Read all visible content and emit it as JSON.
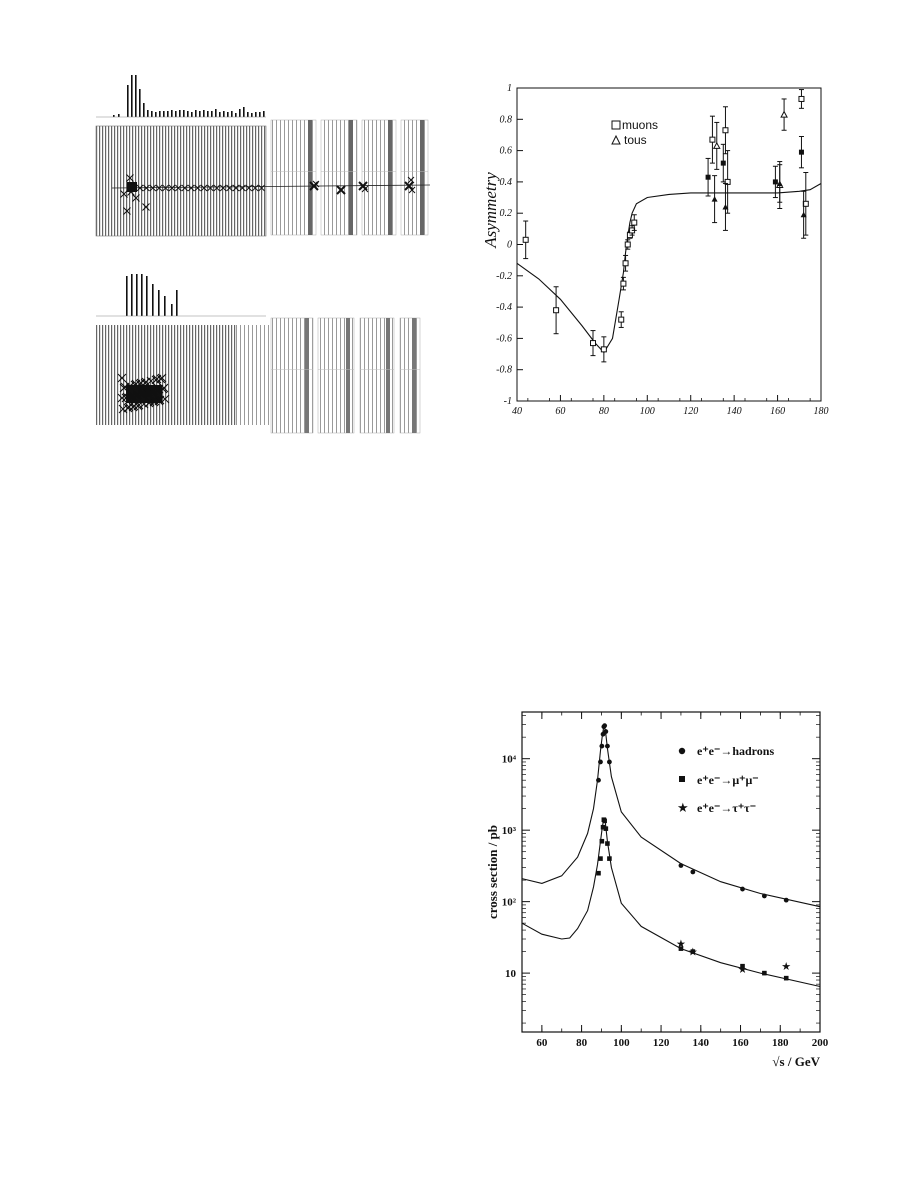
{
  "chart_data": [
    {
      "type": "scatter",
      "ylabel": "Asymmetry",
      "xlim": [
        40,
        180
      ],
      "ylim": [
        -1,
        1
      ],
      "xticks": [
        40,
        60,
        80,
        100,
        120,
        140,
        160,
        180
      ],
      "yticks": [
        1,
        0.8,
        0.6,
        0.4,
        0.2,
        0,
        -0.2,
        -0.4,
        -0.6,
        -0.8,
        -1
      ],
      "legend": [
        "muons",
        "tous"
      ],
      "legend_position": "top-center",
      "series": [
        {
          "name": "muons",
          "marker": "square-open",
          "x": [
            44,
            58,
            75,
            80,
            88,
            89,
            90,
            91,
            92,
            93,
            94,
            130,
            136,
            137,
            171,
            173
          ],
          "y": [
            0.03,
            -0.42,
            -0.63,
            -0.67,
            -0.48,
            -0.25,
            -0.12,
            0.0,
            0.06,
            0.09,
            0.14,
            0.67,
            0.73,
            0.4,
            0.93,
            0.26
          ],
          "err": [
            0.12,
            0.15,
            0.08,
            0.08,
            0.05,
            0.04,
            0.05,
            0.03,
            0.02,
            0.03,
            0.05,
            0.15,
            0.15,
            0.2,
            0.06,
            0.2
          ]
        },
        {
          "name": "tous",
          "marker": "triangle-open",
          "x": [
            132,
            161,
            163
          ],
          "y": [
            0.63,
            0.38,
            0.83
          ],
          "err": [
            0.15,
            0.15,
            0.1
          ]
        },
        {
          "name": "",
          "marker": "square-filled",
          "x": [
            128,
            135,
            159,
            171
          ],
          "y": [
            0.43,
            0.52,
            0.4,
            0.59
          ],
          "err": [
            0.12,
            0.12,
            0.1,
            0.1
          ]
        },
        {
          "name": "",
          "marker": "triangle-filled",
          "x": [
            131,
            136,
            161,
            172
          ],
          "y": [
            0.29,
            0.24,
            0.39,
            0.19
          ],
          "err": [
            0.15,
            0.15,
            0.12,
            0.15
          ]
        }
      ],
      "curve": {
        "x": [
          40,
          50,
          60,
          70,
          76,
          80,
          84,
          87,
          89,
          90,
          91,
          92,
          93,
          95,
          100,
          110,
          120,
          140,
          160,
          170,
          175,
          180
        ],
        "y": [
          -0.12,
          -0.22,
          -0.35,
          -0.52,
          -0.63,
          -0.69,
          -0.6,
          -0.35,
          -0.18,
          -0.05,
          0.05,
          0.14,
          0.2,
          0.26,
          0.3,
          0.32,
          0.33,
          0.33,
          0.33,
          0.34,
          0.35,
          0.39
        ]
      }
    },
    {
      "type": "scatter",
      "ylabel": "cross section / pb",
      "xlabel": "√s / GeV",
      "yscale": "log",
      "xlim": [
        50,
        200
      ],
      "ylim": [
        1.5,
        45000
      ],
      "xticks": [
        60,
        80,
        100,
        120,
        140,
        160,
        180,
        200
      ],
      "yticks": [
        10,
        100,
        1000,
        10000
      ],
      "ytick_labels": [
        "10",
        "10²",
        "10³",
        "10⁴"
      ],
      "legend": [
        "e⁺e⁻→hadrons",
        "e⁺e⁻→μ⁺μ⁻",
        "e⁺e⁻→τ⁺τ⁻"
      ],
      "legend_position": "top-right",
      "series": [
        {
          "name": "e⁺e⁻→hadrons",
          "marker": "circle-filled",
          "x": [
            88.5,
            89.5,
            90.2,
            90.8,
            91.2,
            91.6,
            92.2,
            93,
            94,
            130,
            136,
            161,
            172,
            183
          ],
          "y": [
            5000,
            9000,
            15000,
            22000,
            28000,
            29000,
            24000,
            15000,
            9000,
            320,
            260,
            150,
            120,
            105
          ]
        },
        {
          "name": "e⁺e⁻→μ⁺μ⁻",
          "marker": "square-filled",
          "x": [
            88.5,
            89.5,
            90.2,
            90.8,
            91.2,
            91.6,
            92.2,
            93,
            94,
            130,
            136,
            161,
            172,
            183
          ],
          "y": [
            250,
            400,
            700,
            1100,
            1400,
            1350,
            1050,
            650,
            400,
            22,
            20,
            12.5,
            10,
            8.5
          ]
        },
        {
          "name": "e⁺e⁻→τ⁺τ⁻",
          "marker": "star",
          "x": [
            130,
            136,
            161,
            183
          ],
          "y": [
            26,
            20,
            11.5,
            12.5
          ]
        }
      ],
      "curves": [
        {
          "x": [
            50,
            60,
            70,
            78,
            83,
            86,
            88,
            89.5,
            90.5,
            91.2,
            92,
            93,
            95,
            100,
            110,
            130,
            150,
            170,
            200
          ],
          "y": [
            210,
            180,
            230,
            420,
            900,
            2000,
            5000,
            13000,
            22000,
            28500,
            25000,
            14000,
            5600,
            1800,
            800,
            340,
            190,
            130,
            85
          ]
        },
        {
          "x": [
            50,
            60,
            70,
            74,
            78,
            83,
            86,
            88,
            89.5,
            90.5,
            91.2,
            92,
            93,
            95,
            100,
            110,
            130,
            150,
            170,
            200
          ],
          "y": [
            50,
            35,
            30,
            31,
            42,
            75,
            160,
            330,
            700,
            1150,
            1420,
            1250,
            700,
            300,
            95,
            45,
            22,
            14,
            10,
            6.5
          ]
        }
      ]
    }
  ]
}
